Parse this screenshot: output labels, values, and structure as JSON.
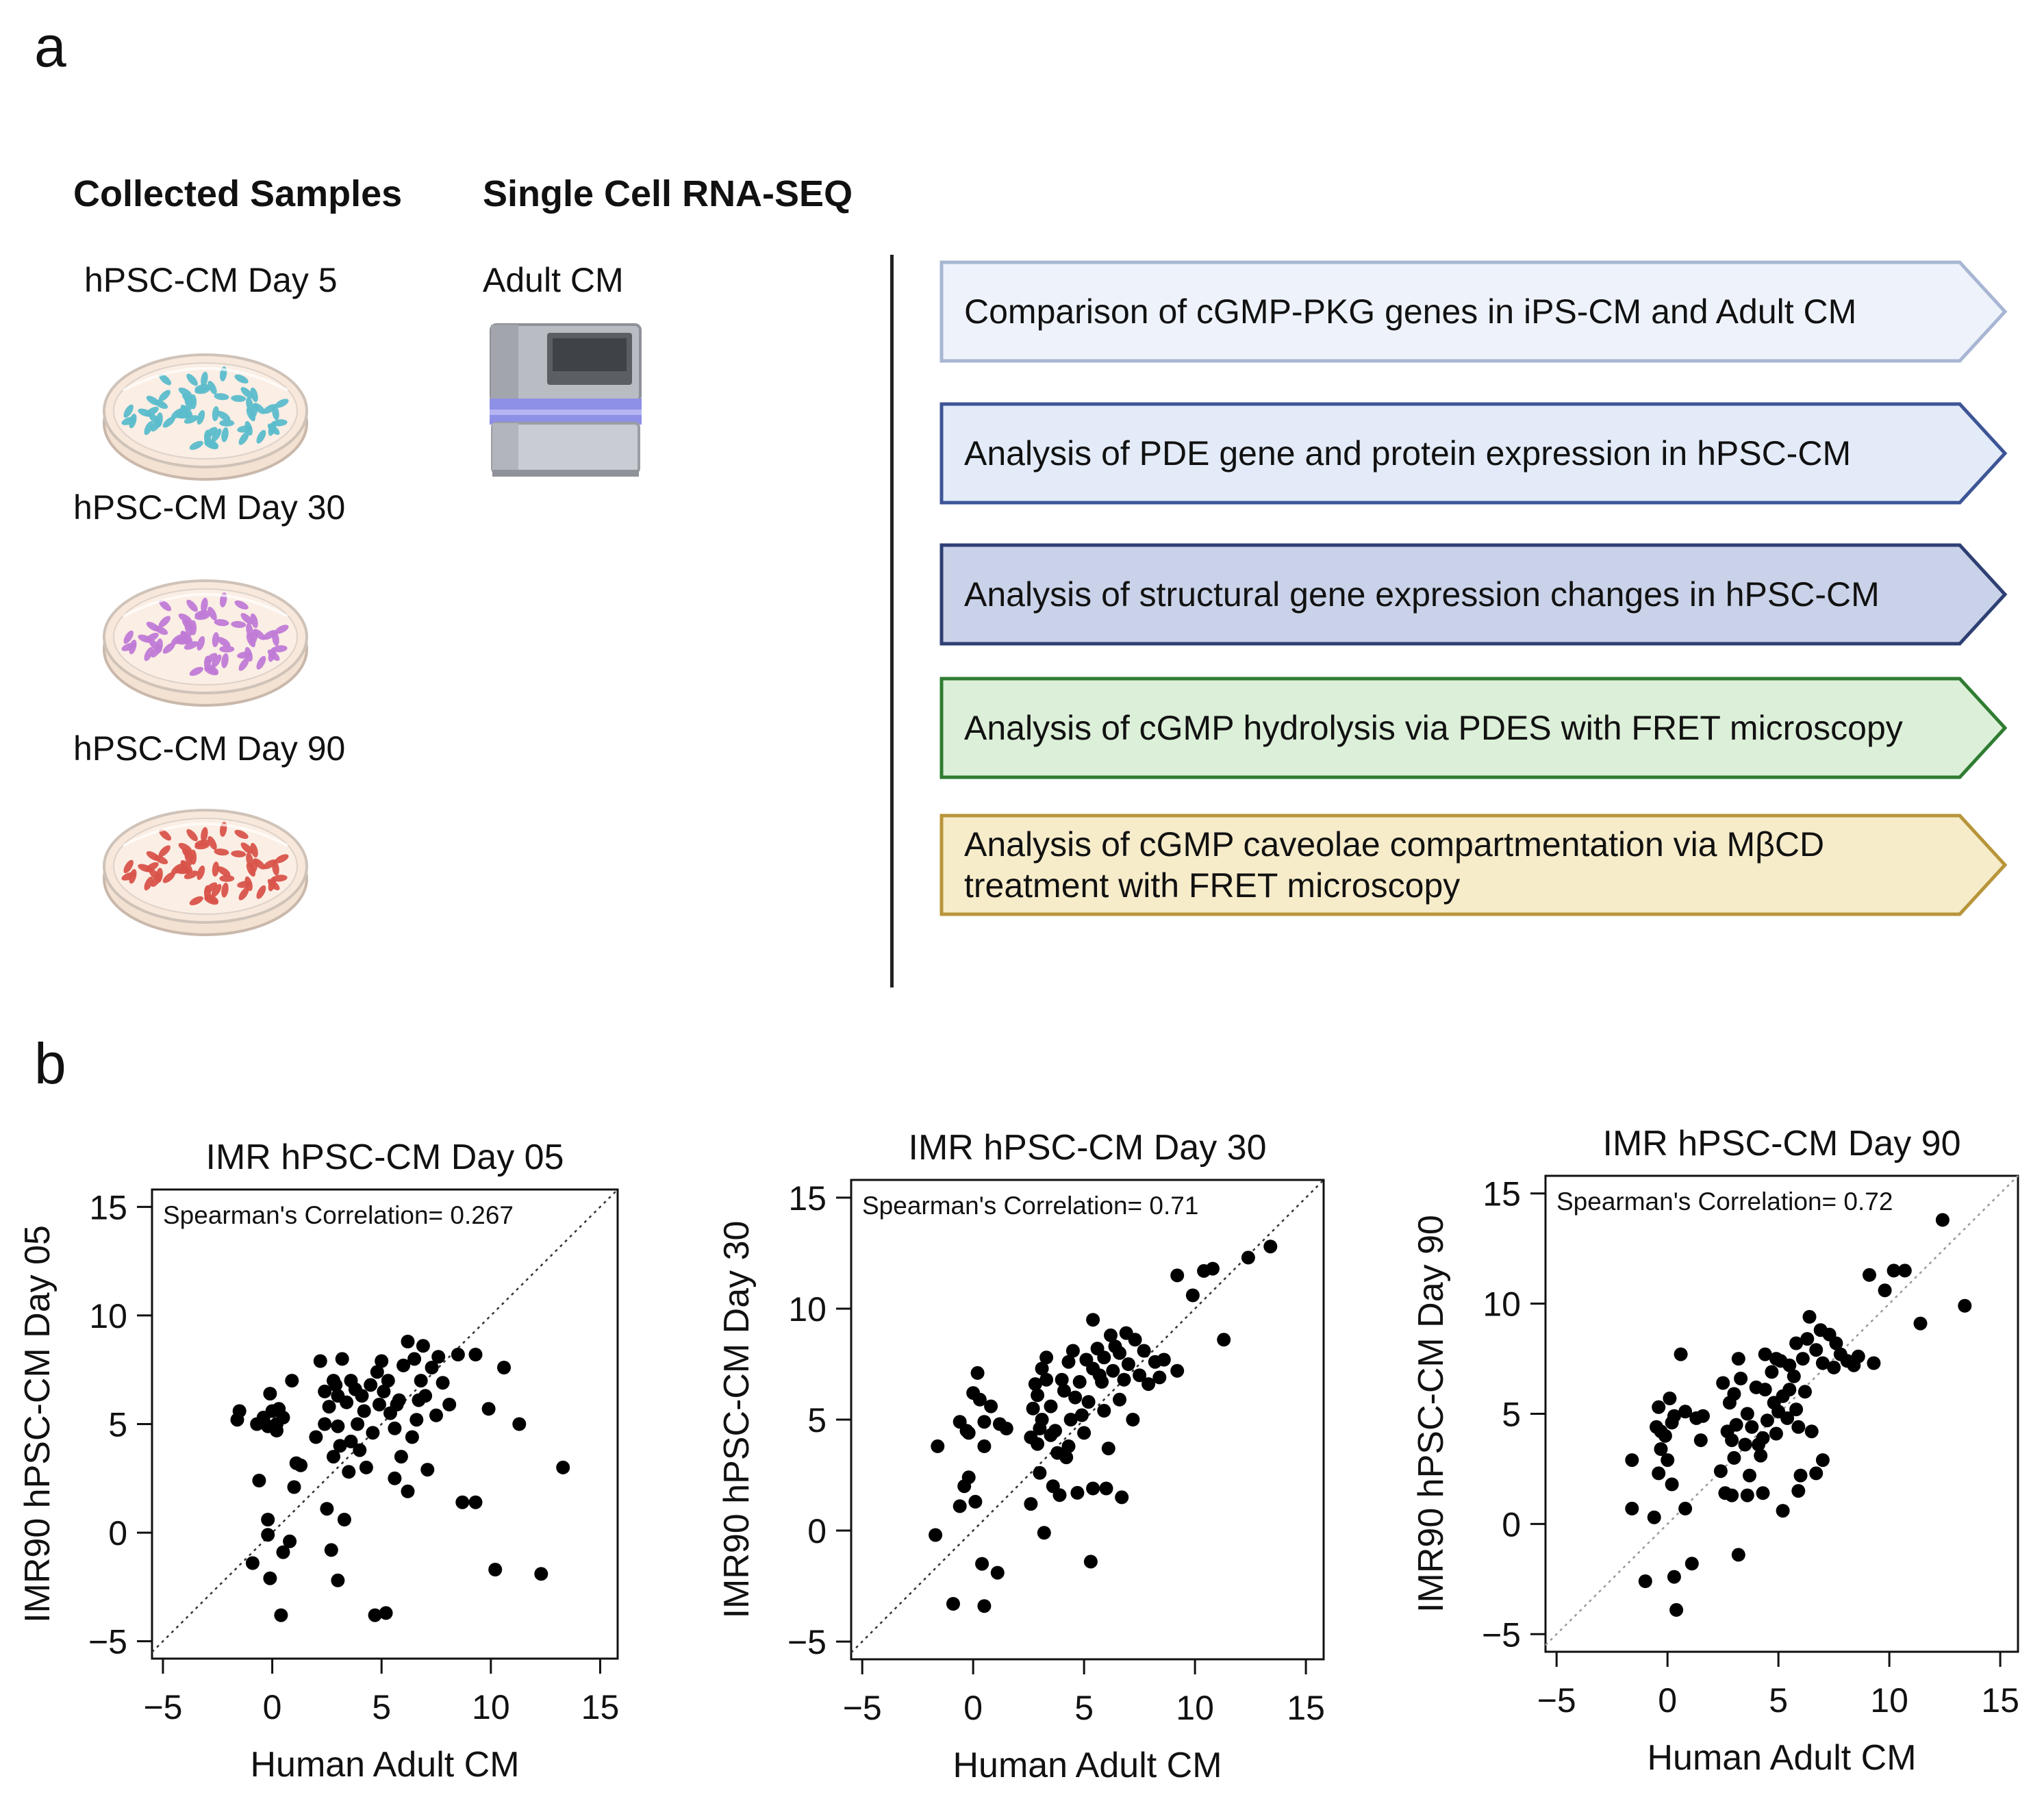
{
  "panel_a": {
    "label": "a",
    "collected_header": "Collected Samples",
    "scrna_header": "Single Cell RNA-SEQ",
    "samples": [
      "hPSC-CM Day 5",
      "hPSC-CM Day 30",
      "hPSC-CM Day 90"
    ],
    "dish_colors": [
      "#5bbccb",
      "#c07ad6",
      "#d9534a"
    ],
    "adult_label": "Adult CM",
    "analyses": [
      {
        "lines": [
          "Comparison of cGMP-PKG genes in iPS-CM and Adult CM"
        ],
        "fill": "#eef3fb",
        "stroke": "#a8b6d3"
      },
      {
        "lines": [
          "Analysis of PDE gene and protein expression in hPSC-CM"
        ],
        "fill": "#e3ebf8",
        "stroke": "#3d5596"
      },
      {
        "lines": [
          "Analysis of structural gene expression changes in hPSC-CM"
        ],
        "fill": "#c9d2e8",
        "stroke": "#2e3f73"
      },
      {
        "lines": [
          "Analysis of cGMP hydrolysis via PDES with FRET microscopy"
        ],
        "fill": "#dcefd8",
        "stroke": "#2e7d32"
      },
      {
        "lines": [
          "Analysis of cGMP caveolae compartmentation via MβCD",
          "treatment with FRET microscopy"
        ],
        "fill": "#f6ecca",
        "stroke": "#b8953a"
      }
    ]
  },
  "panel_b": {
    "label": "b"
  },
  "chart_data": [
    {
      "type": "scatter",
      "title": "IMR hPSC-CM Day 05",
      "xlabel": "Human Adult CM",
      "ylabel": "IMR90 hPSC-CM Day 05",
      "annotation": "Spearman's Correlation= 0.267",
      "xlim": [
        -5.5,
        15.8
      ],
      "ylim": [
        -5.8,
        15.8
      ],
      "xticks": [
        -5,
        0,
        5,
        10,
        15
      ],
      "yticks": [
        -5,
        0,
        5,
        10,
        15
      ],
      "tick_labels": [
        "−5",
        "0",
        "5",
        "10",
        "15"
      ],
      "diagonal": true,
      "diagonal_color": "#333333",
      "points": [
        [
          -1.6,
          5.2
        ],
        [
          -1.5,
          5.6
        ],
        [
          -0.7,
          5.0
        ],
        [
          -0.4,
          5.3
        ],
        [
          -0.2,
          4.9
        ],
        [
          0.0,
          5.6
        ],
        [
          0.2,
          5.0
        ],
        [
          0.5,
          5.3
        ],
        [
          0.3,
          5.7
        ],
        [
          -0.1,
          6.4
        ],
        [
          0.9,
          7.0
        ],
        [
          -0.6,
          2.4
        ],
        [
          -0.2,
          0.6
        ],
        [
          -0.9,
          -1.4
        ],
        [
          -0.1,
          -2.1
        ],
        [
          0.5,
          -0.9
        ],
        [
          0.8,
          -0.4
        ],
        [
          0.4,
          -3.8
        ],
        [
          -0.2,
          -0.1
        ],
        [
          1.1,
          3.2
        ],
        [
          1.3,
          3.1
        ],
        [
          2.0,
          4.4
        ],
        [
          2.4,
          5.0
        ],
        [
          2.6,
          5.8
        ],
        [
          3.0,
          6.3
        ],
        [
          2.8,
          7.0
        ],
        [
          3.2,
          8.0
        ],
        [
          3.6,
          7.0
        ],
        [
          3.4,
          6.0
        ],
        [
          3.9,
          5.0
        ],
        [
          4.2,
          5.6
        ],
        [
          4.5,
          6.8
        ],
        [
          4.8,
          7.4
        ],
        [
          5.1,
          6.5
        ],
        [
          5.4,
          5.5
        ],
        [
          5.6,
          4.8
        ],
        [
          5.8,
          6.1
        ],
        [
          6.0,
          7.7
        ],
        [
          6.2,
          8.8
        ],
        [
          6.5,
          8.0
        ],
        [
          6.8,
          7.0
        ],
        [
          7.0,
          6.3
        ],
        [
          7.3,
          7.6
        ],
        [
          7.6,
          8.1
        ],
        [
          7.8,
          6.9
        ],
        [
          8.1,
          5.9
        ],
        [
          6.6,
          5.2
        ],
        [
          5.9,
          3.5
        ],
        [
          5.6,
          2.5
        ],
        [
          6.2,
          1.9
        ],
        [
          7.1,
          2.9
        ],
        [
          4.3,
          3.0
        ],
        [
          3.6,
          4.2
        ],
        [
          3.1,
          4.0
        ],
        [
          2.8,
          3.5
        ],
        [
          2.5,
          1.1
        ],
        [
          2.7,
          -0.8
        ],
        [
          3.3,
          0.6
        ],
        [
          3.0,
          -2.2
        ],
        [
          4.7,
          -3.8
        ],
        [
          5.2,
          -3.7
        ],
        [
          8.7,
          1.4
        ],
        [
          9.3,
          1.4
        ],
        [
          9.9,
          5.7
        ],
        [
          10.2,
          -1.7
        ],
        [
          10.6,
          7.6
        ],
        [
          11.3,
          5.0
        ],
        [
          12.3,
          -1.9
        ],
        [
          13.3,
          3.0
        ],
        [
          8.5,
          8.2
        ],
        [
          9.3,
          8.2
        ],
        [
          4.0,
          3.8
        ],
        [
          3.8,
          6.6
        ],
        [
          6.4,
          4.4
        ],
        [
          2.9,
          6.8
        ],
        [
          2.2,
          7.9
        ],
        [
          4.6,
          4.6
        ],
        [
          5.3,
          7.0
        ],
        [
          6.7,
          6.1
        ],
        [
          3.5,
          2.8
        ],
        [
          7.5,
          5.4
        ],
        [
          4.9,
          5.9
        ],
        [
          2.4,
          6.5
        ],
        [
          5.0,
          7.9
        ],
        [
          3.0,
          4.9
        ],
        [
          6.9,
          8.6
        ],
        [
          1.0,
          2.1
        ],
        [
          0.2,
          4.7
        ],
        [
          4.1,
          6.3
        ],
        [
          5.7,
          5.9
        ]
      ]
    },
    {
      "type": "scatter",
      "title": "IMR hPSC-CM Day 30",
      "xlabel": "Human Adult CM",
      "ylabel": "IMR90 hPSC-CM Day 30",
      "annotation": "Spearman's Correlation= 0.71",
      "xlim": [
        -5.5,
        15.8
      ],
      "ylim": [
        -5.8,
        15.8
      ],
      "xticks": [
        -5,
        0,
        5,
        10,
        15
      ],
      "yticks": [
        -5,
        0,
        5,
        10,
        15
      ],
      "tick_labels": [
        "−5",
        "0",
        "5",
        "10",
        "15"
      ],
      "diagonal": true,
      "diagonal_color": "#333333",
      "points": [
        [
          -1.7,
          -0.2
        ],
        [
          -1.6,
          3.8
        ],
        [
          -0.9,
          -3.3
        ],
        [
          -0.6,
          1.1
        ],
        [
          -0.4,
          2.0
        ],
        [
          -0.2,
          2.4
        ],
        [
          0.1,
          1.3
        ],
        [
          0.4,
          -1.5
        ],
        [
          0.5,
          -3.4
        ],
        [
          1.1,
          -1.9
        ],
        [
          -0.6,
          4.9
        ],
        [
          -0.3,
          4.5
        ],
        [
          0.0,
          6.2
        ],
        [
          0.2,
          7.1
        ],
        [
          0.5,
          4.9
        ],
        [
          0.8,
          5.6
        ],
        [
          1.2,
          4.8
        ],
        [
          0.5,
          3.8
        ],
        [
          2.6,
          4.2
        ],
        [
          2.7,
          5.5
        ],
        [
          2.9,
          6.1
        ],
        [
          3.1,
          5.0
        ],
        [
          3.3,
          6.8
        ],
        [
          3.1,
          7.3
        ],
        [
          3.5,
          5.6
        ],
        [
          3.7,
          4.5
        ],
        [
          3.8,
          3.5
        ],
        [
          4.1,
          6.3
        ],
        [
          4.3,
          7.6
        ],
        [
          4.6,
          6.0
        ],
        [
          4.9,
          5.2
        ],
        [
          5.2,
          5.8
        ],
        [
          5.4,
          7.3
        ],
        [
          5.6,
          8.2
        ],
        [
          5.4,
          9.5
        ],
        [
          5.9,
          7.8
        ],
        [
          6.3,
          7.2
        ],
        [
          6.6,
          8.0
        ],
        [
          6.8,
          6.8
        ],
        [
          7.0,
          7.5
        ],
        [
          7.3,
          8.6
        ],
        [
          7.5,
          7.0
        ],
        [
          7.9,
          6.6
        ],
        [
          8.2,
          7.6
        ],
        [
          8.6,
          7.7
        ],
        [
          9.2,
          7.2
        ],
        [
          6.2,
          8.8
        ],
        [
          5.8,
          6.7
        ],
        [
          6.6,
          5.9
        ],
        [
          7.2,
          5.0
        ],
        [
          6.1,
          3.7
        ],
        [
          5.4,
          1.9
        ],
        [
          4.7,
          1.7
        ],
        [
          3.9,
          1.6
        ],
        [
          3.0,
          2.6
        ],
        [
          2.6,
          1.2
        ],
        [
          3.2,
          -0.1
        ],
        [
          5.3,
          -1.4
        ],
        [
          6.0,
          1.9
        ],
        [
          6.7,
          1.5
        ],
        [
          9.2,
          11.5
        ],
        [
          9.9,
          10.6
        ],
        [
          10.4,
          11.7
        ],
        [
          10.8,
          11.8
        ],
        [
          11.3,
          8.6
        ],
        [
          12.4,
          12.3
        ],
        [
          13.4,
          12.8
        ],
        [
          3.5,
          4.3
        ],
        [
          4.4,
          5.0
        ],
        [
          5.1,
          7.7
        ],
        [
          6.4,
          8.3
        ],
        [
          4.0,
          6.8
        ],
        [
          3.3,
          7.8
        ],
        [
          2.8,
          6.6
        ],
        [
          5.7,
          7.0
        ],
        [
          4.8,
          6.7
        ],
        [
          7.7,
          8.1
        ],
        [
          8.4,
          6.9
        ],
        [
          4.2,
          3.3
        ],
        [
          5.0,
          4.4
        ],
        [
          3.6,
          2.0
        ],
        [
          6.9,
          8.9
        ],
        [
          4.5,
          8.1
        ],
        [
          3.0,
          4.6
        ],
        [
          5.9,
          5.4
        ],
        [
          2.9,
          3.9
        ],
        [
          0.3,
          5.9
        ],
        [
          -0.2,
          4.4
        ],
        [
          1.5,
          4.6
        ],
        [
          4.3,
          3.8
        ]
      ]
    },
    {
      "type": "scatter",
      "title": "IMR hPSC-CM Day 90",
      "xlabel": "Human Adult CM",
      "ylabel": "IMR90 hPSC-CM Day 90",
      "annotation": "Spearman's Correlation= 0.72",
      "xlim": [
        -5.5,
        15.8
      ],
      "ylim": [
        -5.8,
        15.8
      ],
      "xticks": [
        -5,
        0,
        5,
        10,
        15
      ],
      "yticks": [
        -5,
        0,
        5,
        10,
        15
      ],
      "tick_labels": [
        "−5",
        "0",
        "5",
        "10",
        "15"
      ],
      "diagonal": true,
      "diagonal_color": "#999999",
      "points": [
        [
          -1.6,
          0.7
        ],
        [
          -1.6,
          2.9
        ],
        [
          -1.0,
          -2.6
        ],
        [
          -0.6,
          0.3
        ],
        [
          -0.4,
          2.3
        ],
        [
          -0.3,
          3.4
        ],
        [
          0.0,
          2.9
        ],
        [
          0.2,
          1.8
        ],
        [
          0.3,
          -2.4
        ],
        [
          0.4,
          -3.9
        ],
        [
          0.8,
          0.7
        ],
        [
          1.1,
          -1.8
        ],
        [
          -0.5,
          4.4
        ],
        [
          -0.4,
          5.3
        ],
        [
          -0.1,
          4.0
        ],
        [
          0.1,
          5.7
        ],
        [
          0.3,
          4.9
        ],
        [
          0.6,
          7.7
        ],
        [
          0.8,
          5.1
        ],
        [
          1.3,
          4.8
        ],
        [
          1.5,
          3.8
        ],
        [
          2.4,
          2.4
        ],
        [
          2.7,
          4.2
        ],
        [
          2.8,
          5.5
        ],
        [
          3.0,
          5.9
        ],
        [
          3.3,
          6.6
        ],
        [
          3.6,
          5.0
        ],
        [
          3.8,
          4.4
        ],
        [
          4.1,
          3.6
        ],
        [
          4.4,
          6.1
        ],
        [
          4.7,
          6.9
        ],
        [
          4.9,
          7.5
        ],
        [
          5.2,
          5.8
        ],
        [
          5.5,
          7.2
        ],
        [
          5.8,
          8.2
        ],
        [
          6.1,
          7.5
        ],
        [
          6.4,
          9.4
        ],
        [
          6.7,
          7.9
        ],
        [
          7.0,
          7.3
        ],
        [
          7.3,
          8.6
        ],
        [
          7.5,
          7.1
        ],
        [
          7.8,
          7.7
        ],
        [
          8.1,
          7.4
        ],
        [
          8.4,
          7.2
        ],
        [
          9.3,
          7.3
        ],
        [
          6.2,
          6.0
        ],
        [
          5.4,
          4.8
        ],
        [
          5.9,
          4.4
        ],
        [
          6.5,
          4.2
        ],
        [
          7.0,
          2.9
        ],
        [
          5.9,
          1.5
        ],
        [
          5.2,
          0.6
        ],
        [
          4.3,
          1.4
        ],
        [
          3.6,
          1.3
        ],
        [
          2.9,
          1.3
        ],
        [
          3.2,
          -1.4
        ],
        [
          6.0,
          2.2
        ],
        [
          6.7,
          2.3
        ],
        [
          9.1,
          11.3
        ],
        [
          9.8,
          10.6
        ],
        [
          10.2,
          11.5
        ],
        [
          10.7,
          11.5
        ],
        [
          11.4,
          9.1
        ],
        [
          12.4,
          13.8
        ],
        [
          13.4,
          9.9
        ],
        [
          3.5,
          3.6
        ],
        [
          4.5,
          4.7
        ],
        [
          5.1,
          7.4
        ],
        [
          6.3,
          8.4
        ],
        [
          4.0,
          6.2
        ],
        [
          3.2,
          7.5
        ],
        [
          2.5,
          6.4
        ],
        [
          5.7,
          6.7
        ],
        [
          4.8,
          5.5
        ],
        [
          7.6,
          8.2
        ],
        [
          8.6,
          7.6
        ],
        [
          4.2,
          3.1
        ],
        [
          5.0,
          5.1
        ],
        [
          3.7,
          2.2
        ],
        [
          6.9,
          8.8
        ],
        [
          4.4,
          7.7
        ],
        [
          3.1,
          4.5
        ],
        [
          5.8,
          5.2
        ],
        [
          2.9,
          3.8
        ],
        [
          0.2,
          4.6
        ],
        [
          -0.3,
          4.2
        ],
        [
          1.6,
          4.9
        ],
        [
          4.3,
          3.9
        ],
        [
          5.5,
          6.1
        ],
        [
          4.9,
          4.1
        ],
        [
          3.0,
          3.0
        ],
        [
          2.6,
          1.4
        ]
      ]
    }
  ]
}
